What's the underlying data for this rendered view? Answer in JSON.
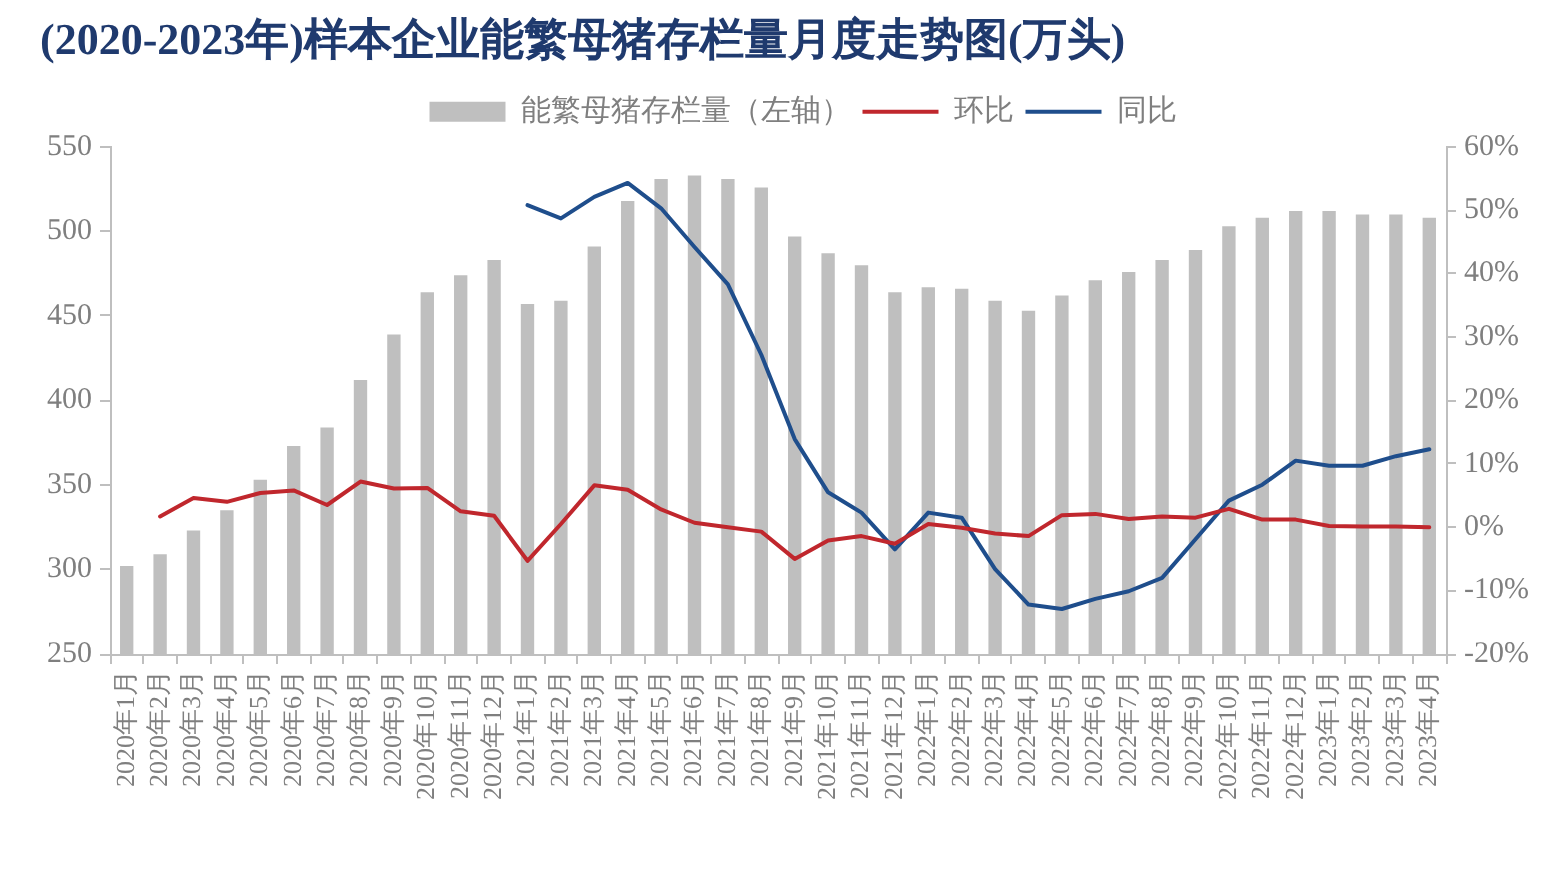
{
  "chart_data": {
    "type": "bar",
    "title": "(2020-2023年)样本企业能繁母猪存栏量月度走势图(万头)",
    "categories": [
      "2020年1月",
      "2020年2月",
      "2020年3月",
      "2020年4月",
      "2020年5月",
      "2020年6月",
      "2020年7月",
      "2020年8月",
      "2020年9月",
      "2020年10月",
      "2020年11月",
      "2020年12月",
      "2021年1月",
      "2021年2月",
      "2021年3月",
      "2021年4月",
      "2021年5月",
      "2021年6月",
      "2021年7月",
      "2021年8月",
      "2021年9月",
      "2021年10月",
      "2021年11月",
      "2021年12月",
      "2022年1月",
      "2022年2月",
      "2022年3月",
      "2022年4月",
      "2022年5月",
      "2022年6月",
      "2022年7月",
      "2022年8月",
      "2022年9月",
      "2022年10月",
      "2022年11月",
      "2022年12月",
      "2023年1月",
      "2023年2月",
      "2023年3月",
      "2023年4月"
    ],
    "series": [
      {
        "name": "能繁母猪存栏量（左轴）",
        "type": "bar",
        "color": "#bfbfbf",
        "values": [
          302,
          309,
          323,
          335,
          353,
          373,
          384,
          412,
          439,
          464,
          474,
          483,
          457,
          459,
          491,
          518,
          531,
          533,
          531,
          526,
          497,
          487,
          480,
          464,
          467,
          466,
          459,
          453,
          462,
          471,
          476,
          483,
          489,
          503,
          508,
          512,
          512,
          510,
          510,
          508
        ]
      },
      {
        "name": "环比",
        "type": "line",
        "axis": "y2",
        "color": "#c0272d",
        "values": [
          null,
          1.7,
          4.6,
          4.0,
          5.4,
          5.8,
          3.5,
          7.2,
          6.1,
          6.2,
          2.5,
          1.8,
          -5.3,
          0.5,
          6.6,
          5.9,
          2.8,
          0.7,
          0,
          -0.7,
          -5.0,
          -2.1,
          -1.4,
          -2.6,
          0.5,
          -0.1,
          -1.0,
          -1.4,
          1.9,
          2.1,
          1.3,
          1.7,
          1.5,
          2.9,
          1.2,
          1.2,
          0.2,
          0.1,
          0.1,
          0
        ]
      },
      {
        "name": "同比",
        "type": "line",
        "axis": "y2",
        "color": "#1f4e8c",
        "values": [
          null,
          null,
          null,
          null,
          null,
          null,
          null,
          null,
          null,
          null,
          null,
          null,
          50.8,
          48.7,
          52.1,
          54.3,
          50.3,
          44.2,
          38.3,
          27.2,
          13.9,
          5.5,
          2.3,
          -3.5,
          2.3,
          1.5,
          -6.6,
          -12.2,
          -12.9,
          -11.3,
          -10.1,
          -8.0,
          -1.9,
          4.2,
          6.7,
          10.5,
          9.7,
          9.7,
          11.2,
          12.3
        ]
      }
    ],
    "ylim": [
      250,
      550
    ],
    "yticks": [
      250,
      300,
      350,
      400,
      450,
      500,
      550
    ],
    "y2lim": [
      -20,
      60
    ],
    "y2ticks": [
      {
        "value": -20,
        "label": "-20%"
      },
      {
        "value": -10,
        "label": "-10%"
      },
      {
        "value": 0,
        "label": "0%"
      },
      {
        "value": 10,
        "label": "10%"
      },
      {
        "value": 20,
        "label": "20%"
      },
      {
        "value": 30,
        "label": "30%"
      },
      {
        "value": 40,
        "label": "40%"
      },
      {
        "value": 50,
        "label": "50%"
      },
      {
        "value": 60,
        "label": "60%"
      }
    ],
    "legend": "top",
    "grid": false,
    "marker": "none"
  }
}
